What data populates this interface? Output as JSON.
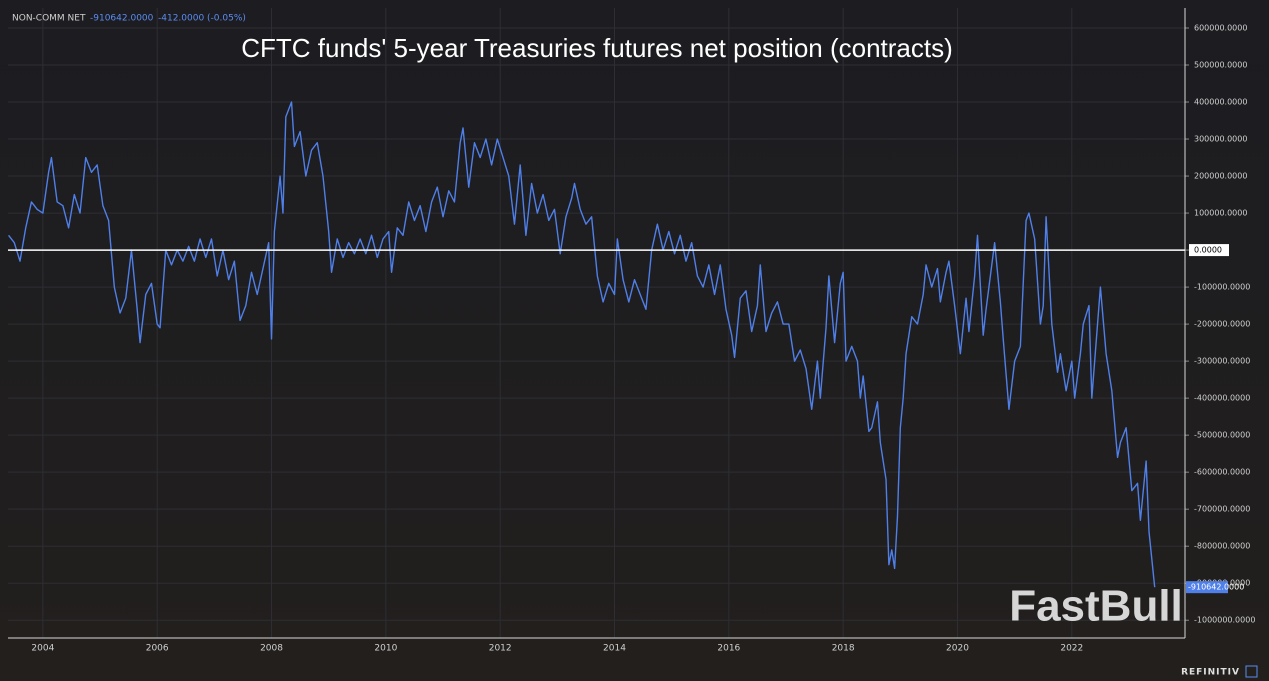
{
  "chart_data": {
    "type": "line",
    "title": "CFTC funds' 5-year Treasuries futures net position (contracts)",
    "header": {
      "name": "NON-COMM NET",
      "value": "-910642.0000",
      "change": "-412.0000 (-0.05%)"
    },
    "last_value_label": "-910642.0000",
    "watermark": "FastBull",
    "source": "REFINITIV",
    "xlim": [
      2003.39,
      2023.98
    ],
    "xticks": [
      2004,
      2006,
      2008,
      2010,
      2012,
      2014,
      2016,
      2018,
      2020,
      2022
    ],
    "ylim": [
      -1048000,
      654000
    ],
    "yticks": [
      {
        "value": 600000,
        "label": "600000.0000"
      },
      {
        "value": 500000,
        "label": "500000.0000"
      },
      {
        "value": 400000,
        "label": "400000.0000"
      },
      {
        "value": 300000,
        "label": "300000.0000"
      },
      {
        "value": 200000,
        "label": "200000.0000"
      },
      {
        "value": 100000,
        "label": "100000.0000"
      },
      {
        "value": 0,
        "label": "0.0000"
      },
      {
        "value": -100000,
        "label": "-100000.0000"
      },
      {
        "value": -200000,
        "label": "-200000.0000"
      },
      {
        "value": -300000,
        "label": "-300000.0000"
      },
      {
        "value": -400000,
        "label": "-400000.0000"
      },
      {
        "value": -500000,
        "label": "-500000.0000"
      },
      {
        "value": -600000,
        "label": "-600000.0000"
      },
      {
        "value": -700000,
        "label": "-700000.0000"
      },
      {
        "value": -800000,
        "label": "-800000.0000"
      },
      {
        "value": -900000,
        "label": "-900000.0000"
      },
      {
        "value": -1000000,
        "label": "-1000000.0000"
      }
    ],
    "grid": true,
    "zero_line": 0,
    "x": [
      2003.4,
      2003.5,
      2003.6,
      2003.7,
      2003.8,
      2003.9,
      2004.0,
      2004.1,
      2004.15,
      2004.25,
      2004.35,
      2004.45,
      2004.55,
      2004.65,
      2004.75,
      2004.85,
      2004.95,
      2005.05,
      2005.15,
      2005.25,
      2005.35,
      2005.45,
      2005.55,
      2005.65,
      2005.7,
      2005.8,
      2005.9,
      2006.0,
      2006.05,
      2006.15,
      2006.25,
      2006.35,
      2006.45,
      2006.55,
      2006.65,
      2006.75,
      2006.85,
      2006.95,
      2007.05,
      2007.15,
      2007.25,
      2007.35,
      2007.45,
      2007.55,
      2007.65,
      2007.75,
      2007.85,
      2007.95,
      2008.0,
      2008.05,
      2008.15,
      2008.2,
      2008.25,
      2008.35,
      2008.4,
      2008.5,
      2008.6,
      2008.7,
      2008.8,
      2008.9,
      2009.0,
      2009.05,
      2009.15,
      2009.25,
      2009.35,
      2009.45,
      2009.55,
      2009.65,
      2009.75,
      2009.85,
      2009.95,
      2010.05,
      2010.1,
      2010.2,
      2010.3,
      2010.4,
      2010.5,
      2010.6,
      2010.7,
      2010.8,
      2010.9,
      2011.0,
      2011.1,
      2011.2,
      2011.3,
      2011.35,
      2011.45,
      2011.55,
      2011.65,
      2011.75,
      2011.85,
      2011.95,
      2012.05,
      2012.15,
      2012.25,
      2012.35,
      2012.45,
      2012.55,
      2012.65,
      2012.75,
      2012.85,
      2012.95,
      2013.05,
      2013.15,
      2013.25,
      2013.3,
      2013.4,
      2013.5,
      2013.6,
      2013.7,
      2013.8,
      2013.9,
      2014.0,
      2014.05,
      2014.15,
      2014.25,
      2014.35,
      2014.45,
      2014.55,
      2014.65,
      2014.75,
      2014.85,
      2014.95,
      2015.05,
      2015.15,
      2015.25,
      2015.35,
      2015.45,
      2015.55,
      2015.65,
      2015.75,
      2015.85,
      2015.95,
      2016.05,
      2016.1,
      2016.2,
      2016.3,
      2016.4,
      2016.5,
      2016.55,
      2016.65,
      2016.75,
      2016.85,
      2016.95,
      2017.05,
      2017.15,
      2017.25,
      2017.35,
      2017.45,
      2017.55,
      2017.6,
      2017.7,
      2017.75,
      2017.85,
      2017.95,
      2018.0,
      2018.05,
      2018.15,
      2018.25,
      2018.3,
      2018.35,
      2018.45,
      2018.5,
      2018.6,
      2018.65,
      2018.75,
      2018.8,
      2018.85,
      2018.9,
      2018.95,
      2019.0,
      2019.05,
      2019.1,
      2019.2,
      2019.3,
      2019.4,
      2019.45,
      2019.55,
      2019.65,
      2019.7,
      2019.8,
      2019.85,
      2019.95,
      2020.05,
      2020.15,
      2020.2,
      2020.3,
      2020.35,
      2020.45,
      2020.5,
      2020.6,
      2020.65,
      2020.75,
      2020.8,
      2020.9,
      2021.0,
      2021.1,
      2021.2,
      2021.25,
      2021.35,
      2021.45,
      2021.5,
      2021.55,
      2021.65,
      2021.75,
      2021.8,
      2021.9,
      2022.0,
      2022.05,
      2022.15,
      2022.2,
      2022.3,
      2022.35,
      2022.45,
      2022.5,
      2022.6,
      2022.7,
      2022.75,
      2022.8,
      2022.85,
      2022.95,
      2023.05,
      2023.15,
      2023.2,
      2023.3,
      2023.35,
      2023.45
    ],
    "series": [
      {
        "name": "NON-COMM NET",
        "color": "#4f7fe8",
        "values": [
          40000,
          20000,
          -30000,
          60000,
          130000,
          110000,
          100000,
          210000,
          250000,
          130000,
          120000,
          60000,
          150000,
          100000,
          250000,
          210000,
          230000,
          120000,
          80000,
          -100000,
          -170000,
          -130000,
          0,
          -160000,
          -250000,
          -120000,
          -90000,
          -200000,
          -210000,
          0,
          -40000,
          0,
          -30000,
          10000,
          -30000,
          30000,
          -20000,
          30000,
          -70000,
          0,
          -80000,
          -30000,
          -190000,
          -150000,
          -60000,
          -120000,
          -50000,
          20000,
          -240000,
          50000,
          200000,
          100000,
          360000,
          400000,
          280000,
          320000,
          200000,
          270000,
          290000,
          200000,
          50000,
          -60000,
          30000,
          -20000,
          20000,
          -10000,
          30000,
          -10000,
          40000,
          -20000,
          30000,
          50000,
          -60000,
          60000,
          40000,
          130000,
          80000,
          120000,
          50000,
          130000,
          170000,
          90000,
          160000,
          130000,
          290000,
          330000,
          170000,
          290000,
          250000,
          300000,
          230000,
          300000,
          250000,
          200000,
          70000,
          230000,
          40000,
          180000,
          100000,
          150000,
          80000,
          110000,
          -10000,
          90000,
          140000,
          180000,
          110000,
          70000,
          90000,
          -70000,
          -140000,
          -90000,
          -120000,
          30000,
          -80000,
          -140000,
          -80000,
          -120000,
          -160000,
          0,
          70000,
          0,
          50000,
          -10000,
          40000,
          -30000,
          20000,
          -70000,
          -100000,
          -40000,
          -120000,
          -40000,
          -160000,
          -230000,
          -290000,
          -130000,
          -110000,
          -220000,
          -150000,
          -40000,
          -220000,
          -170000,
          -140000,
          -200000,
          -200000,
          -300000,
          -270000,
          -320000,
          -430000,
          -300000,
          -400000,
          -210000,
          -70000,
          -250000,
          -90000,
          -60000,
          -300000,
          -260000,
          -300000,
          -400000,
          -340000,
          -490000,
          -480000,
          -410000,
          -520000,
          -620000,
          -850000,
          -810000,
          -860000,
          -720000,
          -480000,
          -400000,
          -280000,
          -180000,
          -200000,
          -120000,
          -40000,
          -100000,
          -50000,
          -140000,
          -60000,
          -30000,
          -150000,
          -280000,
          -130000,
          -220000,
          -70000,
          40000,
          -230000,
          -160000,
          -40000,
          20000,
          -140000,
          -240000,
          -430000,
          -300000,
          -260000,
          80000,
          100000,
          30000,
          -200000,
          -150000,
          90000,
          -200000,
          -330000,
          -280000,
          -380000,
          -300000,
          -400000,
          -280000,
          -200000,
          -150000,
          -400000,
          -200000,
          -100000,
          -280000,
          -380000,
          -470000,
          -560000,
          -520000,
          -480000,
          -650000,
          -630000,
          -730000,
          -570000,
          -760000,
          -910642
        ]
      }
    ]
  }
}
